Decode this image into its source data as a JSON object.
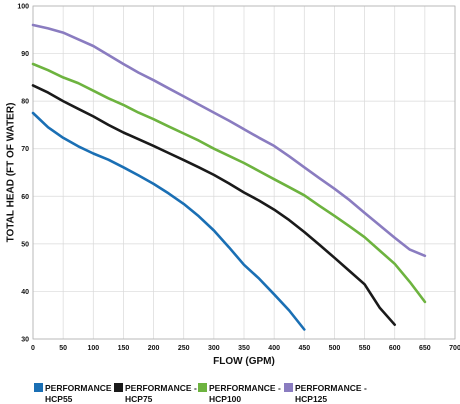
{
  "chart_data": {
    "type": "line",
    "title": "",
    "xlabel": "FLOW (GPM)",
    "ylabel": "TOTAL HEAD (FT OF WATER)",
    "xlim": [
      0,
      700
    ],
    "ylim": [
      30,
      100
    ],
    "x_ticks": [
      "0",
      "50",
      "100",
      "150",
      "200",
      "250",
      "300",
      "350",
      "400",
      "450",
      "500",
      "550",
      "600",
      "650",
      "700"
    ],
    "y_ticks": [
      "30",
      "40",
      "50",
      "60",
      "70",
      "80",
      "90",
      "100"
    ],
    "grid": true,
    "legend_position": "bottom",
    "series": [
      {
        "name": "PERFORMANCE - HCP55",
        "color": "#1a6fb4",
        "points": [
          [
            0,
            77.5
          ],
          [
            25,
            74.5
          ],
          [
            50,
            72.3
          ],
          [
            75,
            70.5
          ],
          [
            100,
            69.0
          ],
          [
            125,
            67.7
          ],
          [
            150,
            66.1
          ],
          [
            175,
            64.4
          ],
          [
            200,
            62.6
          ],
          [
            225,
            60.6
          ],
          [
            250,
            58.4
          ],
          [
            275,
            55.8
          ],
          [
            300,
            52.8
          ],
          [
            325,
            49.3
          ],
          [
            350,
            45.6
          ],
          [
            375,
            42.7
          ],
          [
            400,
            39.4
          ],
          [
            425,
            36.0
          ],
          [
            450,
            32.0
          ]
        ]
      },
      {
        "name": "PERFORMANCE - HCP75",
        "color": "#1a1a1a",
        "points": [
          [
            0,
            83.3
          ],
          [
            25,
            81.8
          ],
          [
            50,
            80.0
          ],
          [
            75,
            78.4
          ],
          [
            100,
            76.8
          ],
          [
            125,
            75.0
          ],
          [
            150,
            73.4
          ],
          [
            175,
            72.0
          ],
          [
            200,
            70.6
          ],
          [
            225,
            69.1
          ],
          [
            250,
            67.6
          ],
          [
            275,
            66.1
          ],
          [
            300,
            64.5
          ],
          [
            325,
            62.7
          ],
          [
            350,
            60.8
          ],
          [
            375,
            59.1
          ],
          [
            400,
            57.2
          ],
          [
            425,
            55.0
          ],
          [
            450,
            52.5
          ],
          [
            475,
            49.8
          ],
          [
            500,
            47.1
          ],
          [
            525,
            44.3
          ],
          [
            550,
            41.5
          ],
          [
            575,
            36.6
          ],
          [
            600,
            33.0
          ]
        ]
      },
      {
        "name": "PERFORMANCE - HCP100",
        "color": "#6db33f",
        "points": [
          [
            0,
            87.8
          ],
          [
            25,
            86.5
          ],
          [
            50,
            85.0
          ],
          [
            75,
            83.8
          ],
          [
            100,
            82.2
          ],
          [
            125,
            80.6
          ],
          [
            150,
            79.2
          ],
          [
            175,
            77.6
          ],
          [
            200,
            76.2
          ],
          [
            225,
            74.7
          ],
          [
            250,
            73.2
          ],
          [
            275,
            71.7
          ],
          [
            300,
            70.0
          ],
          [
            325,
            68.5
          ],
          [
            350,
            67.0
          ],
          [
            375,
            65.3
          ],
          [
            400,
            63.6
          ],
          [
            425,
            61.9
          ],
          [
            450,
            60.2
          ],
          [
            475,
            58.0
          ],
          [
            500,
            55.9
          ],
          [
            525,
            53.7
          ],
          [
            550,
            51.4
          ],
          [
            575,
            48.6
          ],
          [
            600,
            45.8
          ],
          [
            625,
            42.0
          ],
          [
            650,
            37.8
          ]
        ]
      },
      {
        "name": "PERFORMANCE - HCP125",
        "color": "#8a7cc0",
        "points": [
          [
            0,
            96.0
          ],
          [
            25,
            95.3
          ],
          [
            50,
            94.4
          ],
          [
            75,
            93.0
          ],
          [
            100,
            91.6
          ],
          [
            125,
            89.7
          ],
          [
            150,
            87.8
          ],
          [
            175,
            86.0
          ],
          [
            200,
            84.4
          ],
          [
            225,
            82.7
          ],
          [
            250,
            81.0
          ],
          [
            275,
            79.3
          ],
          [
            300,
            77.6
          ],
          [
            325,
            75.9
          ],
          [
            350,
            74.1
          ],
          [
            375,
            72.3
          ],
          [
            400,
            70.6
          ],
          [
            425,
            68.4
          ],
          [
            450,
            66.1
          ],
          [
            475,
            63.8
          ],
          [
            500,
            61.6
          ],
          [
            525,
            59.2
          ],
          [
            550,
            56.5
          ],
          [
            575,
            53.9
          ],
          [
            600,
            51.3
          ],
          [
            625,
            48.8
          ],
          [
            650,
            47.5
          ]
        ]
      }
    ]
  }
}
